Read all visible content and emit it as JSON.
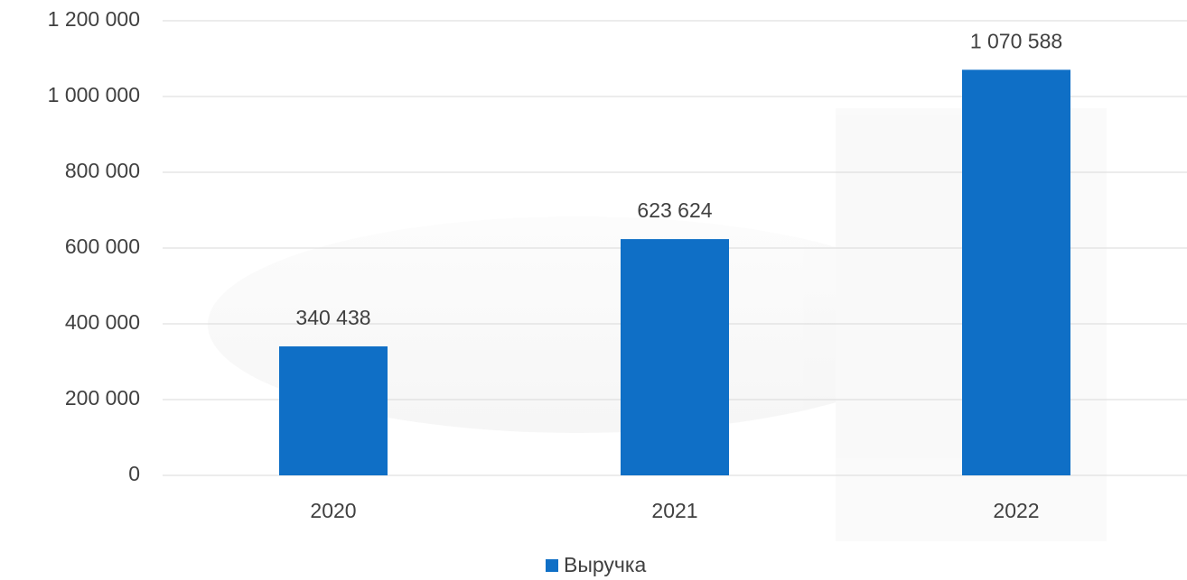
{
  "chart_data": {
    "type": "bar",
    "categories": [
      "2020",
      "2021",
      "2022"
    ],
    "series": [
      {
        "name": "Выручка",
        "color": "#0f6fc6",
        "values": [
          340438,
          623624,
          1070588
        ],
        "value_labels": [
          "340 438",
          "623 624",
          "1 070 588"
        ]
      }
    ],
    "ylim": [
      0,
      1200000
    ],
    "yticks": [
      0,
      {
        "value": 200000,
        "label": "200 000"
      },
      {
        "value": 400000,
        "label": "400 000"
      },
      {
        "value": 600000,
        "label": "600 000"
      },
      {
        "value": 800000,
        "label": "800 000"
      },
      {
        "value": 1000000,
        "label": "1 000 000"
      },
      {
        "value": 1200000,
        "label": "1 200 000"
      }
    ],
    "grid": true,
    "legend": "bottom"
  }
}
